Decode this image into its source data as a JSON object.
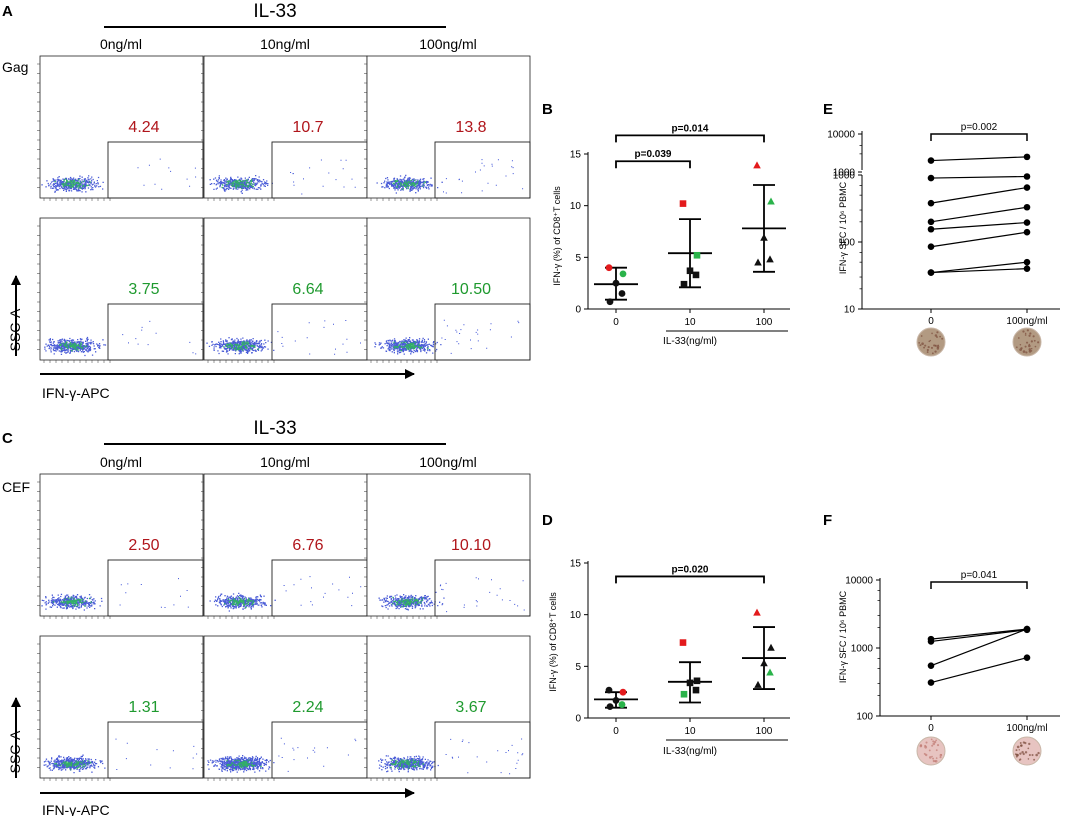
{
  "flow_panels": [
    {
      "label": "A",
      "header": "IL-33",
      "columns": [
        "0ng/ml",
        "10ng/ml",
        "100ng/ml"
      ],
      "rows": [
        {
          "row_label": "Gag",
          "values": [
            "4.24",
            "10.7",
            "13.8"
          ],
          "color": "#b0151b"
        },
        {
          "row_label": "",
          "values": [
            "3.75",
            "6.64",
            "10.50"
          ],
          "color": "#1f9a2f"
        }
      ],
      "y_axis": "SSC-A",
      "x_axis": "IFN-γ-APC"
    },
    {
      "label": "C",
      "header": "IL-33",
      "columns": [
        "0ng/ml",
        "10ng/ml",
        "100ng/ml"
      ],
      "rows": [
        {
          "row_label": "CEF",
          "values": [
            "2.50",
            "6.76",
            "10.10"
          ],
          "color": "#b0151b"
        },
        {
          "row_label": "",
          "values": [
            "1.31",
            "2.24",
            "3.67"
          ],
          "color": "#1f9a2f"
        }
      ],
      "y_axis": "SSC-A",
      "x_axis": "IFN-γ-APC"
    }
  ],
  "chart_data": [
    {
      "label": "B",
      "type": "scatter",
      "ylabel": "IFN-γ (%) of CD8⁺T cells",
      "xlabel": "IL-33(ng/ml)",
      "categories": [
        "0",
        "10",
        "100"
      ],
      "ylim": [
        0,
        15
      ],
      "yticks": [
        "0",
        "5",
        "10",
        "15"
      ],
      "groups": [
        {
          "mean": 2.4,
          "sd_low": 0.9,
          "sd_high": 4.0,
          "shape": "circle",
          "points": [
            {
              "y": 4.0,
              "c": "red"
            },
            {
              "y": 3.4,
              "c": "green"
            },
            {
              "y": 2.5,
              "c": "black"
            },
            {
              "y": 1.5,
              "c": "black"
            },
            {
              "y": 0.7,
              "c": "black"
            }
          ]
        },
        {
          "mean": 5.4,
          "sd_low": 2.1,
          "sd_high": 8.7,
          "shape": "square",
          "points": [
            {
              "y": 10.2,
              "c": "red"
            },
            {
              "y": 5.2,
              "c": "green"
            },
            {
              "y": 3.7,
              "c": "black"
            },
            {
              "y": 3.3,
              "c": "black"
            },
            {
              "y": 2.4,
              "c": "black"
            }
          ]
        },
        {
          "mean": 7.8,
          "sd_low": 3.6,
          "sd_high": 12.0,
          "shape": "triangle",
          "points": [
            {
              "y": 13.9,
              "c": "red"
            },
            {
              "y": 10.4,
              "c": "green"
            },
            {
              "y": 6.9,
              "c": "black"
            },
            {
              "y": 4.8,
              "c": "black"
            },
            {
              "y": 4.5,
              "c": "black"
            }
          ]
        }
      ],
      "brackets": [
        {
          "from": 0,
          "to": 1,
          "y": 14.3,
          "text": "p=0.039"
        },
        {
          "from": 0,
          "to": 2,
          "y": 16.8,
          "text": "p=0.014"
        }
      ]
    },
    {
      "label": "D",
      "type": "scatter",
      "ylabel": "IFN-γ (%) of CD8⁺T cells",
      "xlabel": "IL-33(ng/ml)",
      "categories": [
        "0",
        "10",
        "100"
      ],
      "ylim": [
        0,
        15
      ],
      "yticks": [
        "0",
        "5",
        "10",
        "15"
      ],
      "groups": [
        {
          "mean": 1.8,
          "sd_low": 1.0,
          "sd_high": 2.5,
          "shape": "circle",
          "points": [
            {
              "y": 2.7,
              "c": "black"
            },
            {
              "y": 2.5,
              "c": "red"
            },
            {
              "y": 1.7,
              "c": "black"
            },
            {
              "y": 1.3,
              "c": "green"
            },
            {
              "y": 1.1,
              "c": "black"
            }
          ]
        },
        {
          "mean": 3.5,
          "sd_low": 1.5,
          "sd_high": 5.4,
          "shape": "square",
          "points": [
            {
              "y": 7.3,
              "c": "red"
            },
            {
              "y": 3.6,
              "c": "black"
            },
            {
              "y": 3.4,
              "c": "black"
            },
            {
              "y": 2.7,
              "c": "black"
            },
            {
              "y": 2.3,
              "c": "green"
            }
          ]
        },
        {
          "mean": 5.8,
          "sd_low": 2.8,
          "sd_high": 8.8,
          "shape": "triangle",
          "points": [
            {
              "y": 10.2,
              "c": "red"
            },
            {
              "y": 6.8,
              "c": "black"
            },
            {
              "y": 5.3,
              "c": "black"
            },
            {
              "y": 4.4,
              "c": "green"
            },
            {
              "y": 3.2,
              "c": "black"
            }
          ]
        }
      ],
      "brackets": [
        {
          "from": 0,
          "to": 2,
          "y": 13.7,
          "text": "p=0.020"
        }
      ]
    },
    {
      "label": "E",
      "type": "line",
      "ylabel": "IFN-γ SFC / 10⁶ PBMC",
      "categories": [
        "0",
        "100ng/ml"
      ],
      "scale": "log-broken",
      "yticks_low": [
        "10",
        "100",
        "1000"
      ],
      "yticks_high": [
        "1000",
        "10000"
      ],
      "pairs": [
        [
          2000,
          2500
        ],
        [
          900,
          950
        ],
        [
          380,
          650
        ],
        [
          200,
          330
        ],
        [
          155,
          195
        ],
        [
          85,
          140
        ],
        [
          35,
          50
        ],
        [
          35,
          40
        ]
      ],
      "bracket": {
        "text": "p=0.002"
      }
    },
    {
      "label": "F",
      "type": "line",
      "ylabel": "IFN-γ SFC / 10⁶ PBMC",
      "categories": [
        "0",
        "100ng/ml"
      ],
      "scale": "log",
      "ylim": [
        100,
        10000
      ],
      "yticks": [
        "100",
        "1000",
        "10000"
      ],
      "pairs": [
        [
          1350,
          1900
        ],
        [
          1250,
          1850
        ],
        [
          550,
          1900
        ],
        [
          310,
          720
        ]
      ],
      "bracket": {
        "text": "p=0.041"
      }
    }
  ],
  "colors": {
    "red": "#e31a1c",
    "green": "#2ab34a",
    "black": "#111111",
    "dark_red": "#b0151b",
    "dark_green": "#1f9a2f"
  },
  "wells": {
    "E": "#b29a82",
    "F": "#e7c4c1"
  }
}
